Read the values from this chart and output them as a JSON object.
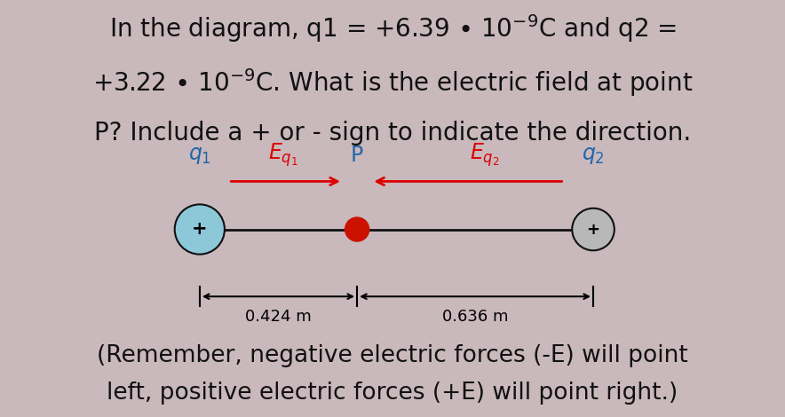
{
  "bg_color": "#c9b8bc",
  "box_bg": "#ffffff",
  "title_line1": "In the diagram, q1 = +6.39 • 10$^{-9}$C and q2 =",
  "title_line2": "+3.22 • 10$^{-9}$C. What is the electric field at point",
  "title_line3": "P? Include a + or - sign to indicate the direction.",
  "footer_line1": "(Remember, negative electric forces (-E) will point",
  "footer_line2": "left, positive electric forces (+E) will point right.)",
  "dist1_label": "0.424 m",
  "dist2_label": "0.636 m",
  "q1_color": "#8cc8d8",
  "q2_color": "#b8b8b8",
  "P_color": "#cc1100",
  "arrow_color": "#dd0000",
  "line_color": "#111111",
  "text_color": "#111111",
  "label_color": "#2266aa",
  "title_fontsize": 20,
  "label_fontsize": 17,
  "dist_fontsize": 13
}
